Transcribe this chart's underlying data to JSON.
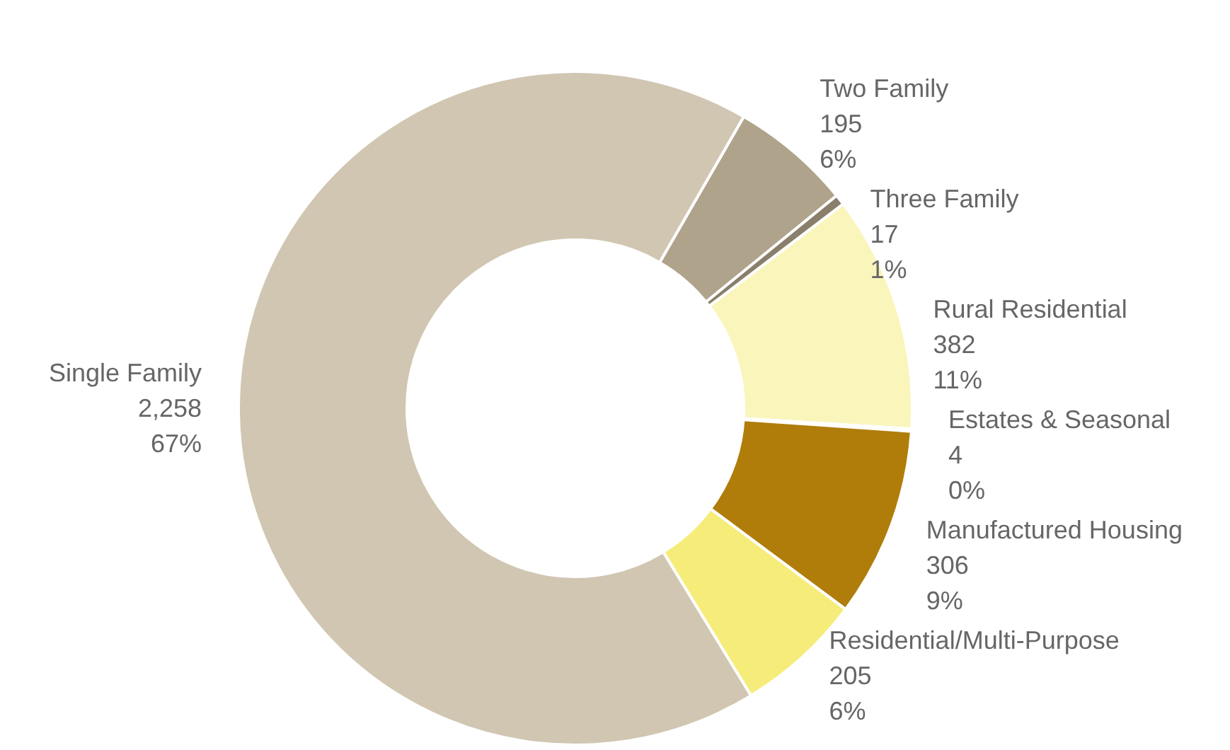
{
  "chart_data": {
    "type": "donut",
    "categories": [
      "Two Family",
      "Three Family",
      "Rural Residential",
      "Estates & Seasonal",
      "Manufactured Housing",
      "Residential/Multi-Purpose",
      "Single Family"
    ],
    "values": [
      195,
      17,
      382,
      4,
      306,
      205,
      2258
    ],
    "value_labels": [
      "195\n6%",
      "17\n1%",
      "382\n11%",
      "4\n0%",
      "306\n9%",
      "205\n6%",
      "2,258\n67%"
    ],
    "colors": [
      "#afa38b",
      "#8a7f6b",
      "#faf5bb",
      "#f3efd6",
      "#b07d0a",
      "#f6ec7a",
      "#d1c6b2"
    ]
  }
}
